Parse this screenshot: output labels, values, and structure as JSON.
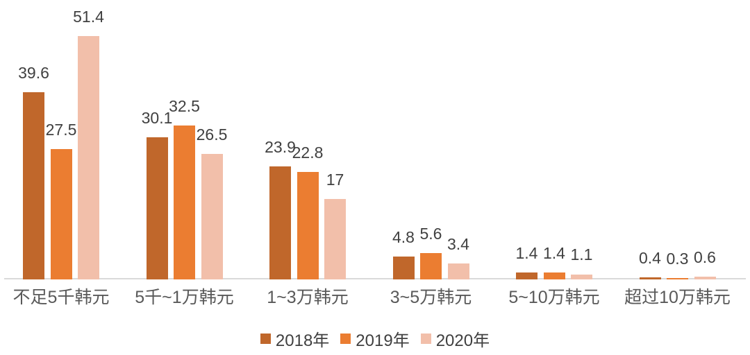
{
  "chart_data": {
    "type": "bar",
    "title": "",
    "xlabel": "",
    "ylabel": "",
    "categories": [
      "不足5千韩元",
      "5千~1万韩元",
      "1~3万韩元",
      "3~5万韩元",
      "5~10万韩元",
      "超过10万韩元"
    ],
    "series": [
      {
        "name": "2018年",
        "color": "#C0672B",
        "values": [
          39.6,
          30.1,
          23.9,
          4.8,
          1.4,
          0.4
        ]
      },
      {
        "name": "2019年",
        "color": "#EB7D31",
        "values": [
          27.5,
          32.5,
          22.8,
          5.6,
          1.4,
          0.3
        ]
      },
      {
        "name": "2020年",
        "color": "#F2BFAA",
        "values": [
          51.4,
          26.5,
          17,
          3.4,
          1.1,
          0.6
        ]
      }
    ],
    "ylim": [
      0,
      56
    ],
    "grid": false,
    "value_labels_shown": true,
    "legend_position": "bottom",
    "axis_line_color": "#D9D9D9",
    "value_label_color": "#404040",
    "category_label_color": "#595959",
    "background_color": "#FFFFFF"
  }
}
